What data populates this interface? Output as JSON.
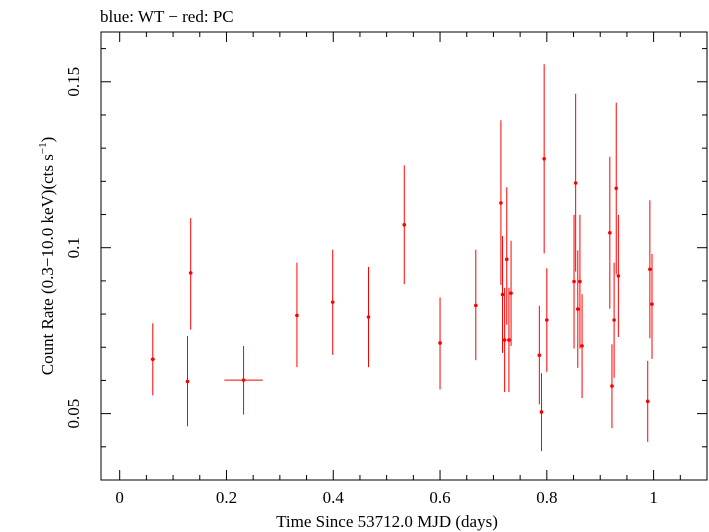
{
  "chart_data": {
    "type": "scatter",
    "title": "blue: WT − red: PC",
    "xlabel": "Time Since 53712.0 MJD (days)",
    "ylabel": "Count Rate (0.3−10.0 keV)(cts s",
    "ylabel_superscript": "−1",
    "ylabel_suffix": ")",
    "xlim": [
      -0.035,
      1.1
    ],
    "ylim": [
      0.03,
      0.165
    ],
    "x_ticks": [
      {
        "value": 0,
        "label": "0"
      },
      {
        "value": 0.2,
        "label": "0.2"
      },
      {
        "value": 0.4,
        "label": "0.4"
      },
      {
        "value": 0.6,
        "label": "0.6"
      },
      {
        "value": 0.8,
        "label": "0.8"
      },
      {
        "value": 1.0,
        "label": "1"
      }
    ],
    "y_ticks": [
      {
        "value": 0.05,
        "label": "0.05"
      },
      {
        "value": 0.1,
        "label": "0.1"
      },
      {
        "value": 0.15,
        "label": "0.15"
      }
    ],
    "grid": false,
    "series": [
      {
        "color": "#ff0000",
        "points": [
          {
            "x": 0.062,
            "y": 0.0664,
            "xerr": 0.004,
            "ylo": 0.0555,
            "yhi": 0.0772
          },
          {
            "x": 0.127,
            "y": 0.0597,
            "xerr": 0.003,
            "ylo": 0.0462,
            "yhi": 0.0734
          },
          {
            "x": 0.133,
            "y": 0.0924,
            "xerr": 0.003,
            "ylo": 0.0753,
            "yhi": 0.1089
          },
          {
            "x": 0.232,
            "y": 0.0601,
            "xerr": 0.036,
            "ylo": 0.0497,
            "yhi": 0.0704
          },
          {
            "x": 0.332,
            "y": 0.0796,
            "xerr": 0.003,
            "ylo": 0.064,
            "yhi": 0.0955
          },
          {
            "x": 0.399,
            "y": 0.0836,
            "xerr": 0.003,
            "ylo": 0.0677,
            "yhi": 0.0994
          },
          {
            "x": 0.466,
            "y": 0.0791,
            "xerr": 0.003,
            "ylo": 0.064,
            "yhi": 0.0942
          },
          {
            "x": 0.533,
            "y": 0.1069,
            "xerr": 0.003,
            "ylo": 0.089,
            "yhi": 0.1248
          },
          {
            "x": 0.6,
            "y": 0.0713,
            "xerr": 0.003,
            "ylo": 0.0573,
            "yhi": 0.085
          },
          {
            "x": 0.667,
            "y": 0.0826,
            "xerr": 0.003,
            "ylo": 0.0661,
            "yhi": 0.0994
          },
          {
            "x": 0.714,
            "y": 0.1135,
            "xerr": 0.002,
            "ylo": 0.0888,
            "yhi": 0.1384
          },
          {
            "x": 0.717,
            "y": 0.0859,
            "xerr": 0.002,
            "ylo": 0.0683,
            "yhi": 0.1035
          },
          {
            "x": 0.721,
            "y": 0.0722,
            "xerr": 0.002,
            "ylo": 0.0565,
            "yhi": 0.0879
          },
          {
            "x": 0.725,
            "y": 0.0965,
            "xerr": 0.002,
            "ylo": 0.0768,
            "yhi": 0.1182
          },
          {
            "x": 0.729,
            "y": 0.0722,
            "xerr": 0.002,
            "ylo": 0.0565,
            "yhi": 0.0879
          },
          {
            "x": 0.733,
            "y": 0.0863,
            "xerr": 0.002,
            "ylo": 0.0704,
            "yhi": 0.1021
          },
          {
            "x": 0.786,
            "y": 0.0676,
            "xerr": 0.002,
            "ylo": 0.0528,
            "yhi": 0.0825
          },
          {
            "x": 0.79,
            "y": 0.0505,
            "xerr": 0.002,
            "ylo": 0.0387,
            "yhi": 0.0622
          },
          {
            "x": 0.795,
            "y": 0.1268,
            "xerr": 0.002,
            "ylo": 0.0983,
            "yhi": 0.1553
          },
          {
            "x": 0.8,
            "y": 0.0782,
            "xerr": 0.002,
            "ylo": 0.0626,
            "yhi": 0.0938
          },
          {
            "x": 0.851,
            "y": 0.0898,
            "xerr": 0.002,
            "ylo": 0.0696,
            "yhi": 0.1099
          },
          {
            "x": 0.854,
            "y": 0.1195,
            "xerr": 0.002,
            "ylo": 0.0928,
            "yhi": 0.1464
          },
          {
            "x": 0.858,
            "y": 0.0815,
            "xerr": 0.002,
            "ylo": 0.0638,
            "yhi": 0.0992
          },
          {
            "x": 0.862,
            "y": 0.0898,
            "xerr": 0.002,
            "ylo": 0.0696,
            "yhi": 0.1099
          },
          {
            "x": 0.866,
            "y": 0.0704,
            "xerr": 0.002,
            "ylo": 0.0547,
            "yhi": 0.086
          },
          {
            "x": 0.918,
            "y": 0.1045,
            "xerr": 0.002,
            "ylo": 0.0816,
            "yhi": 0.1274
          },
          {
            "x": 0.922,
            "y": 0.0583,
            "xerr": 0.002,
            "ylo": 0.0456,
            "yhi": 0.0709
          },
          {
            "x": 0.926,
            "y": 0.0782,
            "xerr": 0.002,
            "ylo": 0.0608,
            "yhi": 0.0955
          },
          {
            "x": 0.93,
            "y": 0.1179,
            "xerr": 0.002,
            "ylo": 0.092,
            "yhi": 0.1437
          },
          {
            "x": 0.934,
            "y": 0.0915,
            "xerr": 0.002,
            "ylo": 0.0731,
            "yhi": 0.1099
          },
          {
            "x": 0.989,
            "y": 0.0537,
            "xerr": 0.002,
            "ylo": 0.0415,
            "yhi": 0.0659
          },
          {
            "x": 0.993,
            "y": 0.0935,
            "xerr": 0.002,
            "ylo": 0.0727,
            "yhi": 0.1143
          },
          {
            "x": 0.997,
            "y": 0.083,
            "xerr": 0.002,
            "ylo": 0.0665,
            "yhi": 0.0981
          }
        ]
      }
    ]
  }
}
